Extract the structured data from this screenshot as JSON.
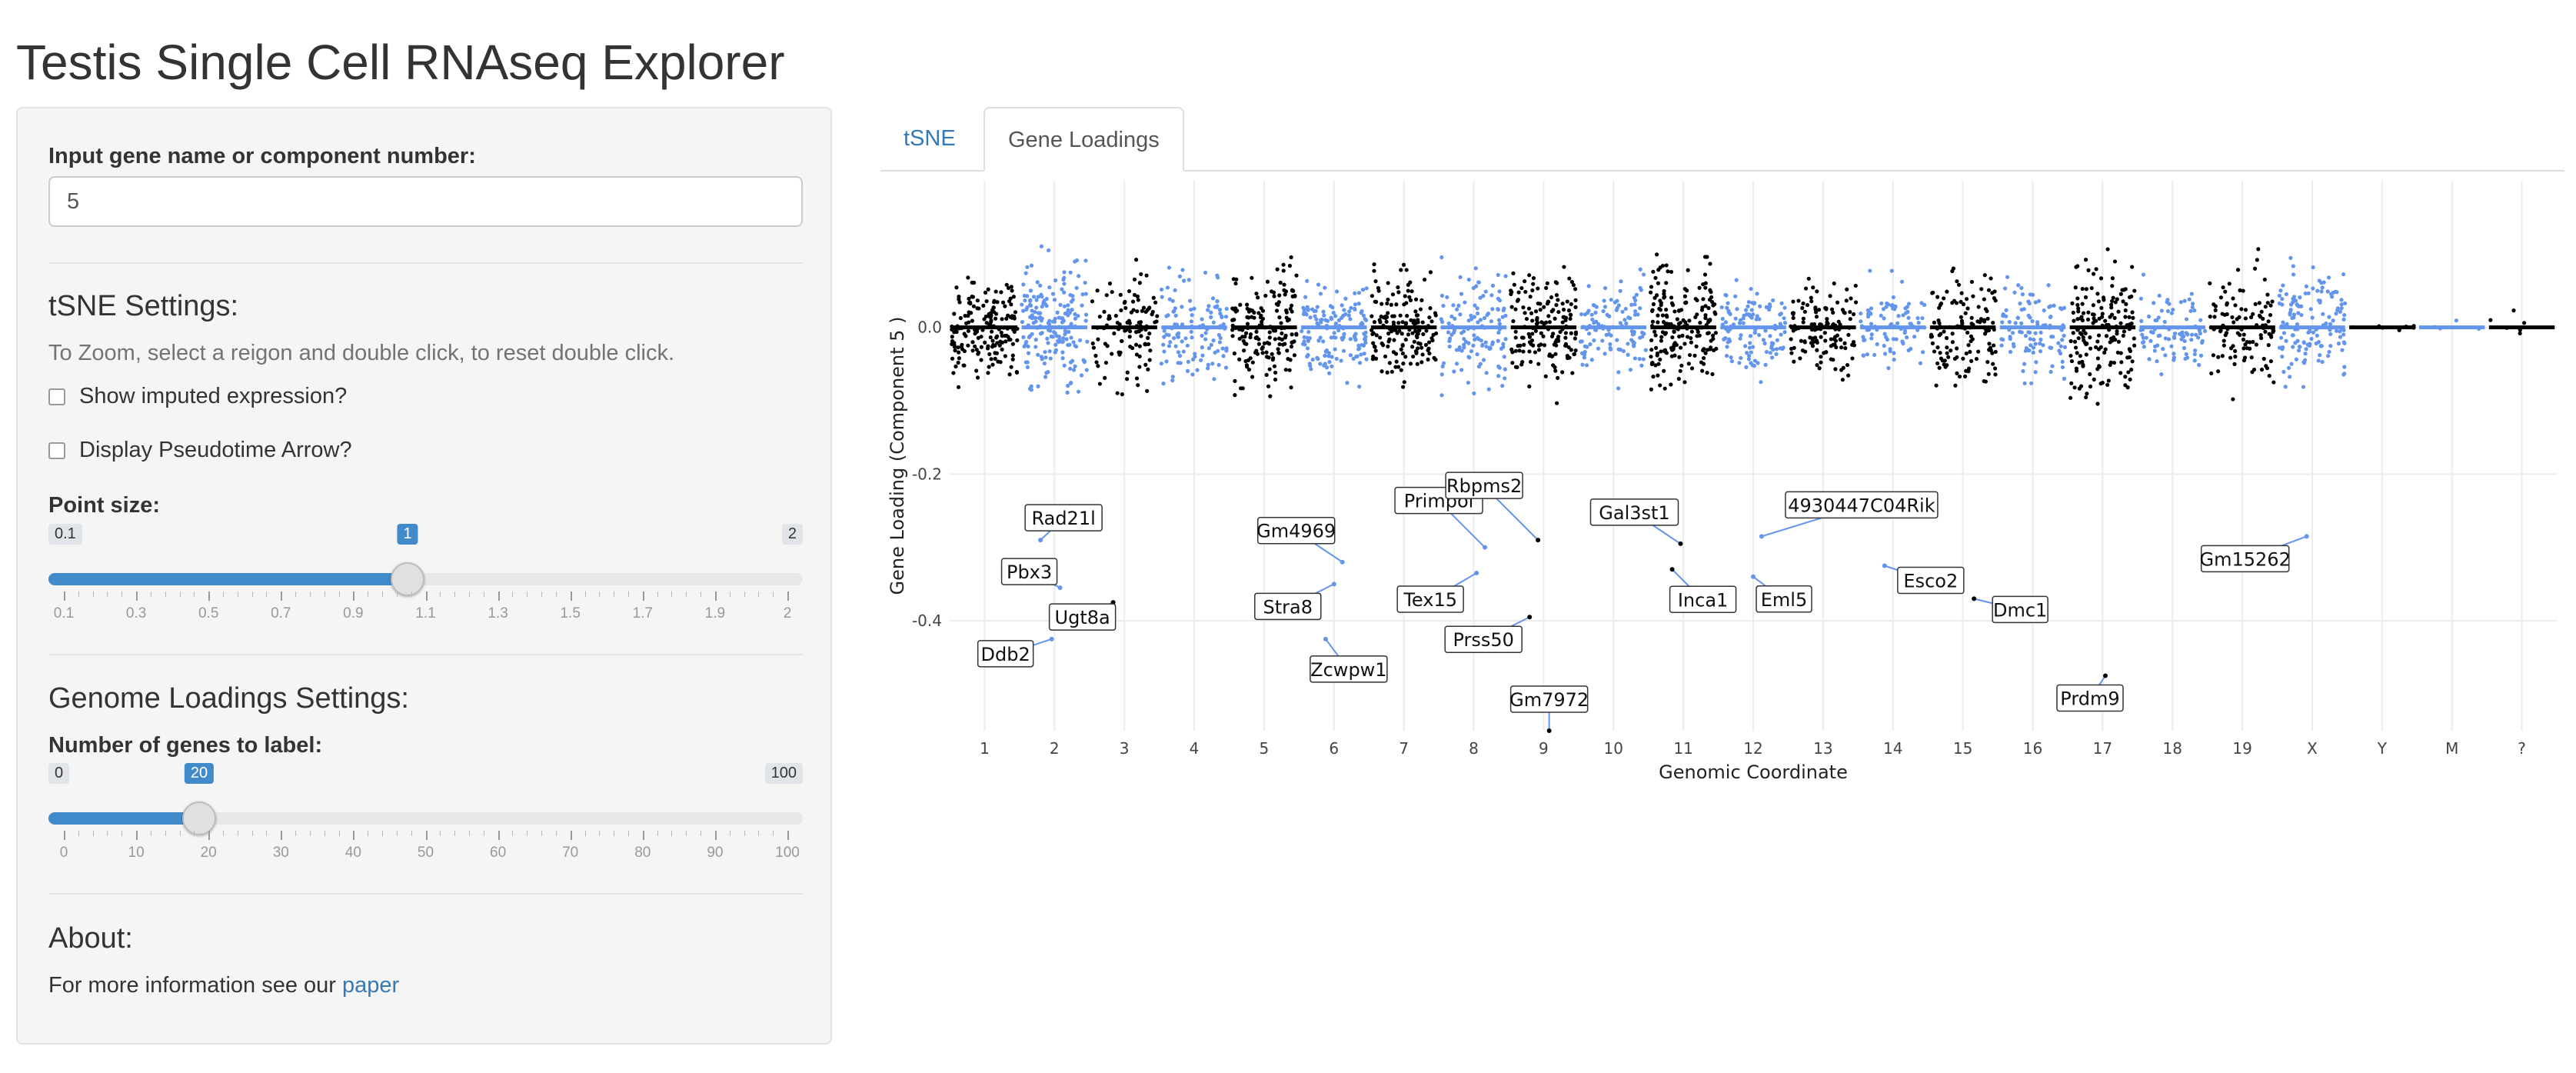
{
  "title": "Testis Single Cell RNAseq Explorer",
  "sidebar": {
    "input_label": "Input gene name or component number:",
    "input_value": "5",
    "tsne_heading": "tSNE Settings:",
    "zoom_help": "To Zoom, select a reigon and double click, to reset double click.",
    "checkbox_imputed": "Show imputed expression?",
    "checkbox_pseudotime": "Display Pseudotime Arrow?",
    "point_size": {
      "label": "Point size:",
      "min": "0.1",
      "max": "2",
      "value": 1,
      "value_label": "1",
      "ticks": [
        "0.1",
        "0.3",
        "0.5",
        "0.7",
        "0.9",
        "1.1",
        "1.3",
        "1.5",
        "1.7",
        "1.9",
        "2"
      ]
    },
    "genome_heading": "Genome Loadings Settings:",
    "genes_to_label": {
      "label": "Number of genes to label:",
      "min": "0",
      "max": "100",
      "value": 20,
      "value_label": "20",
      "ticks": [
        "0",
        "10",
        "20",
        "30",
        "40",
        "50",
        "60",
        "70",
        "80",
        "90",
        "100"
      ]
    },
    "about_heading": "About:",
    "about_text": "For more information see our",
    "about_link": "paper"
  },
  "tabs": [
    {
      "label": "tSNE",
      "active": false
    },
    {
      "label": "Gene Loadings",
      "active": true
    }
  ],
  "colors": {
    "accent": "#428bca",
    "link": "#337ab7",
    "point_dark": "#000000",
    "point_blue": "#6495ed"
  },
  "chart_data": {
    "type": "scatter",
    "xlabel": "Genomic Coordinate",
    "ylabel": "Gene Loading (Component 5 )",
    "y_ticks": [
      0.0,
      -0.2,
      -0.4
    ],
    "y_tick_labels": [
      "0.0",
      "-0.2",
      "-0.4"
    ],
    "ylim": [
      -0.55,
      0.2
    ],
    "grid": true,
    "series": [
      {
        "colors_alternate": [
          "#000000",
          "#6495ed"
        ]
      }
    ],
    "chromosomes": [
      {
        "label": "1",
        "range": [
          0,
          1
        ]
      },
      {
        "label": "2",
        "range": [
          1,
          2
        ]
      },
      {
        "label": "3",
        "range": [
          2,
          3
        ]
      },
      {
        "label": "4",
        "range": [
          3,
          4
        ]
      },
      {
        "label": "5",
        "range": [
          4,
          5
        ]
      },
      {
        "label": "6",
        "range": [
          5,
          6
        ]
      },
      {
        "label": "7",
        "range": [
          6,
          7
        ]
      },
      {
        "label": "8",
        "range": [
          7,
          8
        ]
      },
      {
        "label": "9",
        "range": [
          8,
          9
        ]
      },
      {
        "label": "10",
        "range": [
          9,
          10
        ]
      },
      {
        "label": "11",
        "range": [
          10,
          11
        ]
      },
      {
        "label": "12",
        "range": [
          11,
          12
        ]
      },
      {
        "label": "13",
        "range": [
          12,
          13
        ]
      },
      {
        "label": "14",
        "range": [
          13,
          14
        ]
      },
      {
        "label": "15",
        "range": [
          14,
          15
        ]
      },
      {
        "label": "16",
        "range": [
          15,
          16
        ]
      },
      {
        "label": "17",
        "range": [
          16,
          17
        ]
      },
      {
        "label": "18",
        "range": [
          17,
          18
        ]
      },
      {
        "label": "19",
        "range": [
          18,
          19
        ]
      },
      {
        "label": "X",
        "range": [
          19,
          20
        ]
      },
      {
        "label": "Y",
        "range": [
          20,
          21
        ]
      },
      {
        "label": "M",
        "range": [
          21,
          22
        ]
      },
      {
        "label": "?",
        "range": [
          22,
          23
        ]
      }
    ],
    "labeled_genes": [
      {
        "name": "Rad21l",
        "chrom": "2",
        "y": -0.29
      },
      {
        "name": "Pbx3",
        "chrom": "2",
        "y": -0.355
      },
      {
        "name": "Ddb2",
        "chrom": "2",
        "y": -0.425
      },
      {
        "name": "Ugt8a",
        "chrom": "3",
        "y": -0.375
      },
      {
        "name": "Gm4969",
        "chrom": "6",
        "y": -0.32
      },
      {
        "name": "Stra8",
        "chrom": "6",
        "y": -0.35
      },
      {
        "name": "Zcwpw1",
        "chrom": "6",
        "y": -0.425
      },
      {
        "name": "Primpol",
        "chrom": "8",
        "y": -0.3
      },
      {
        "name": "Tex15",
        "chrom": "8",
        "y": -0.335
      },
      {
        "name": "Rbpms2",
        "chrom": "9",
        "y": -0.29
      },
      {
        "name": "Prss50",
        "chrom": "9",
        "y": -0.395
      },
      {
        "name": "Gm7972",
        "chrom": "9",
        "y": -0.55
      },
      {
        "name": "Gal3st1",
        "chrom": "11",
        "y": -0.295
      },
      {
        "name": "Inca1",
        "chrom": "11",
        "y": -0.33
      },
      {
        "name": "4930447C04Rik",
        "chrom": "12",
        "y": -0.285
      },
      {
        "name": "Eml5",
        "chrom": "12",
        "y": -0.34
      },
      {
        "name": "Esco2",
        "chrom": "14",
        "y": -0.325
      },
      {
        "name": "Dmc1",
        "chrom": "15",
        "y": -0.37
      },
      {
        "name": "Prdm9",
        "chrom": "17",
        "y": -0.475
      },
      {
        "name": "Gm15262",
        "chrom": "X",
        "y": -0.285
      }
    ]
  }
}
